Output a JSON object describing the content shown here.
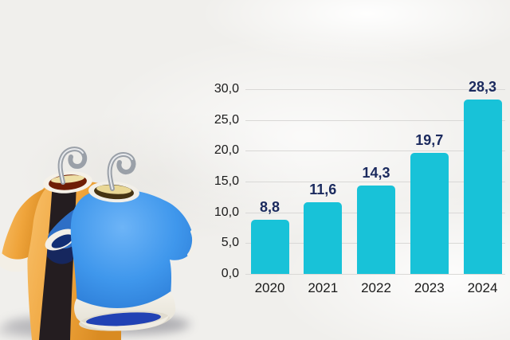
{
  "chart_data": {
    "type": "bar",
    "categories": [
      "2020",
      "2021",
      "2022",
      "2023",
      "2024"
    ],
    "values": [
      8.8,
      11.6,
      14.3,
      19.7,
      28.3
    ],
    "value_labels": [
      "8,8",
      "11,6",
      "14,3",
      "19,7",
      "28,3"
    ],
    "y_ticks": [
      0,
      5,
      10,
      15,
      20,
      25,
      30
    ],
    "y_tick_labels": [
      "0,0",
      "5,0",
      "10,0",
      "15,0",
      "20,0",
      "25,0",
      "30,0"
    ],
    "title": "",
    "xlabel": "",
    "ylabel": "",
    "ylim": [
      0,
      30
    ],
    "grid": true,
    "legend": false,
    "bar_color": "#18c2d8",
    "value_label_color": "#1b2a5e",
    "axis_text_color": "#1a1a1a",
    "gridline_color": "#d9d8d6"
  },
  "illustration": {
    "name": "two t-shirts on hanger hooks",
    "colors": {
      "back_shirt": "#efa43b",
      "back_shirt_highlight": "#f8c06a",
      "stripe": "#241d20",
      "front_shirt": "#3f97ec",
      "front_shirt_highlight": "#6db4f7",
      "trim_white": "#f0ece2",
      "hem_interior_blue": "#2242b4",
      "collar_interior": "#6f1d05",
      "hanger_bar_cream": "#eedfa6",
      "hook_metal": "#9aa0a8"
    }
  },
  "background_color": "#f0efec"
}
